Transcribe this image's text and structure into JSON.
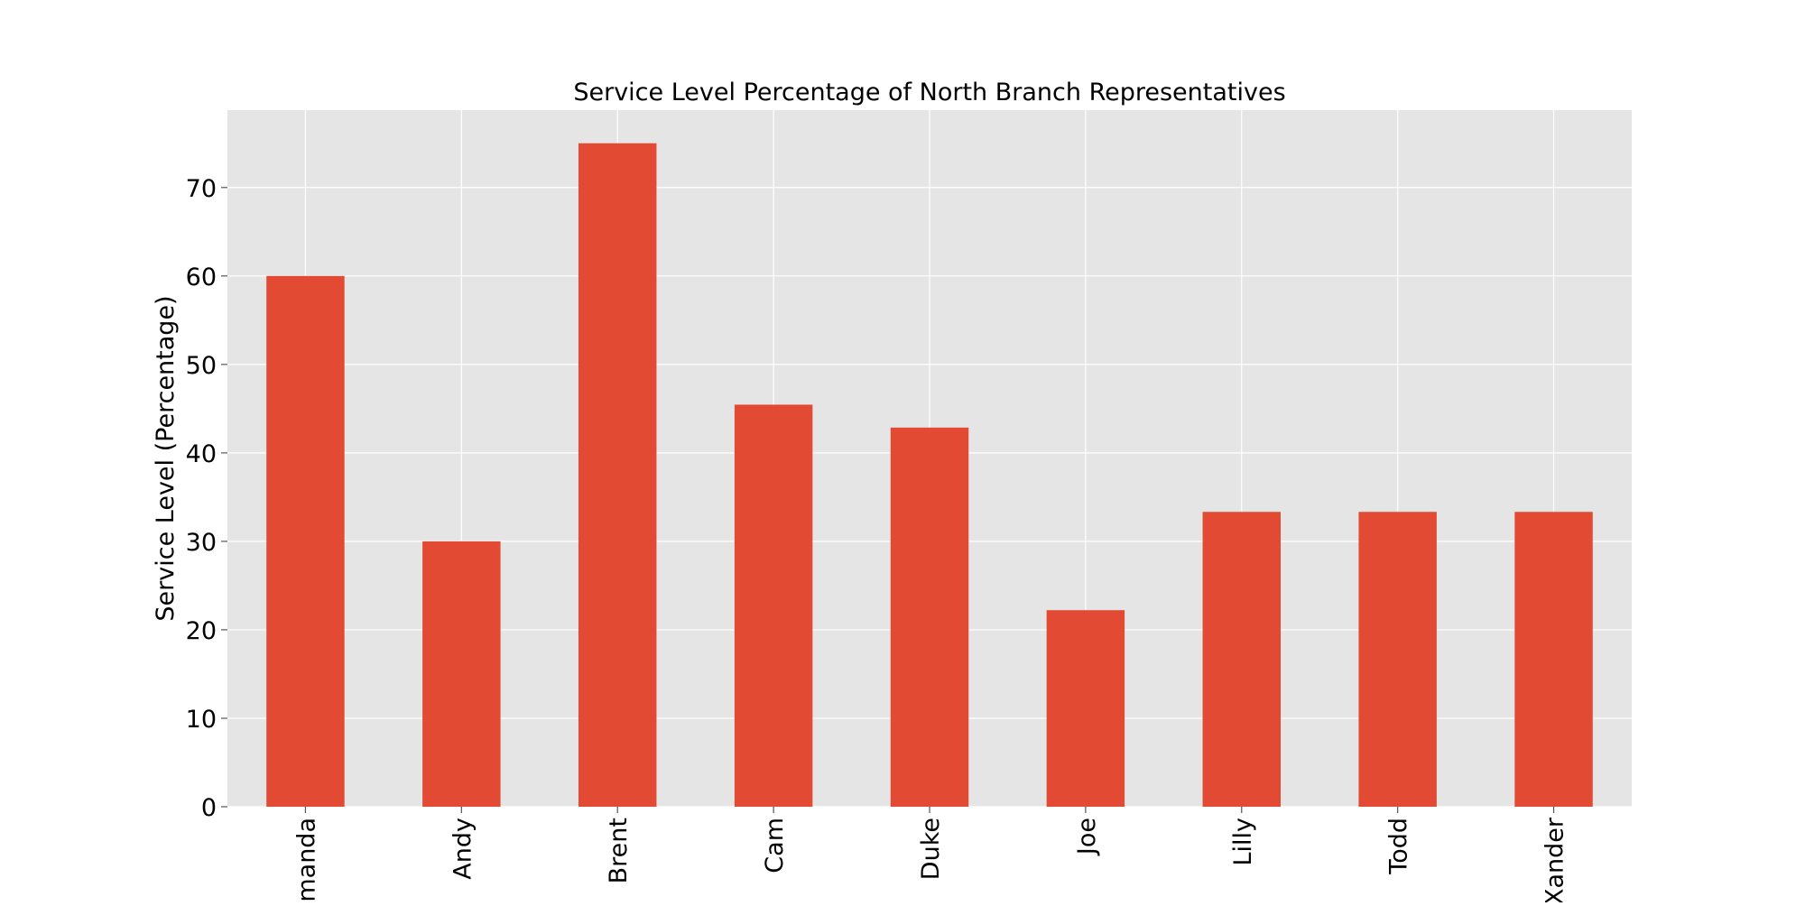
{
  "chart_data": {
    "type": "bar",
    "title": "Service Level Percentage of North Branch Representatives",
    "xlabel": "",
    "ylabel": "Service Level (Percentage)",
    "categories": [
      "Amanda",
      "Andy",
      "Brent",
      "Cam",
      "Duke",
      "Joe",
      "Lilly",
      "Todd",
      "Xander"
    ],
    "values": [
      60.0,
      30.0,
      75.0,
      45.45,
      42.86,
      22.22,
      33.33,
      33.33,
      33.33
    ],
    "ylim": [
      0,
      78.75
    ],
    "yticks": [
      0,
      10,
      20,
      30,
      40,
      50,
      60,
      70
    ],
    "grid": true,
    "bar_color": "#E24A33",
    "plot_background": "#E5E5E5",
    "grid_color": "#FFFFFF"
  }
}
